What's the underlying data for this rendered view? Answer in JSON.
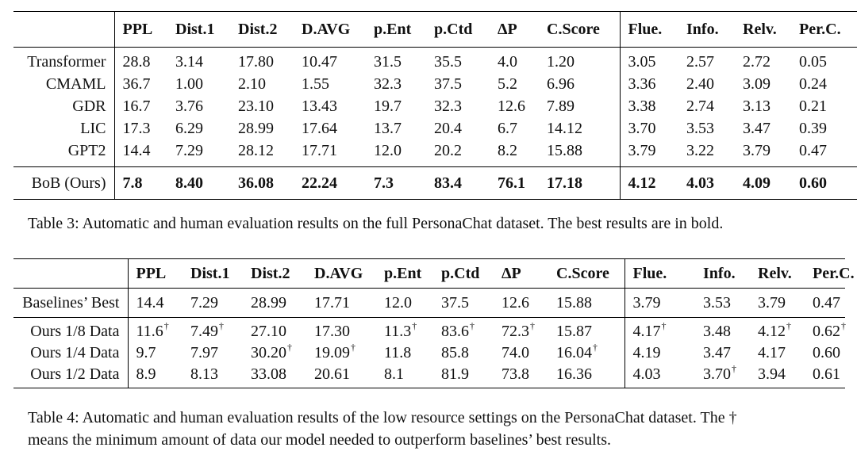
{
  "table3": {
    "headers": [
      "",
      "PPL",
      "Dist.1",
      "Dist.2",
      "D.AVG",
      "p.Ent",
      "p.Ctd",
      "ΔP",
      "C.Score",
      "Flue.",
      "Info.",
      "Relv.",
      "Per.C."
    ],
    "rows": [
      {
        "name": "Transformer",
        "values": [
          "28.8",
          "3.14",
          "17.80",
          "10.47",
          "31.5",
          "35.5",
          "4.0",
          "1.20",
          "3.05",
          "2.57",
          "2.72",
          "0.05"
        ]
      },
      {
        "name": "CMAML",
        "values": [
          "36.7",
          "1.00",
          "2.10",
          "1.55",
          "32.3",
          "37.5",
          "5.2",
          "6.96",
          "3.36",
          "2.40",
          "3.09",
          "0.24"
        ]
      },
      {
        "name": "GDR",
        "values": [
          "16.7",
          "3.76",
          "23.10",
          "13.43",
          "19.7",
          "32.3",
          "12.6",
          "7.89",
          "3.38",
          "2.74",
          "3.13",
          "0.21"
        ]
      },
      {
        "name": "LIC",
        "values": [
          "17.3",
          "6.29",
          "28.99",
          "17.64",
          "13.7",
          "20.4",
          "6.7",
          "14.12",
          "3.70",
          "3.53",
          "3.47",
          "0.39"
        ]
      },
      {
        "name": "GPT2",
        "values": [
          "14.4",
          "7.29",
          "28.12",
          "17.71",
          "12.0",
          "20.2",
          "8.2",
          "15.88",
          "3.79",
          "3.22",
          "3.79",
          "0.47"
        ]
      },
      {
        "name": "BoB (Ours)",
        "values": [
          "7.8",
          "8.40",
          "36.08",
          "22.24",
          "7.3",
          "83.4",
          "76.1",
          "17.18",
          "4.12",
          "4.03",
          "4.09",
          "0.60"
        ]
      }
    ],
    "caption": "Table 3: Automatic and human evaluation results on the full PersonaChat dataset. The best results are in bold."
  },
  "table4": {
    "headers": [
      "",
      "PPL",
      "Dist.1",
      "Dist.2",
      "D.AVG",
      "p.Ent",
      "p.Ctd",
      "ΔP",
      "C.Score",
      "Flue.",
      "Info.",
      "Relv.",
      "Per.C."
    ],
    "dagger": "†",
    "rows": [
      {
        "name": "Baselines’ Best",
        "values": [
          [
            "14.4",
            ""
          ],
          [
            "7.29",
            ""
          ],
          [
            "28.99",
            ""
          ],
          [
            "17.71",
            ""
          ],
          [
            "12.0",
            ""
          ],
          [
            "37.5",
            ""
          ],
          [
            "12.6",
            ""
          ],
          [
            "15.88",
            ""
          ],
          [
            "3.79",
            ""
          ],
          [
            "3.53",
            ""
          ],
          [
            "3.79",
            ""
          ],
          [
            "0.47",
            ""
          ]
        ]
      },
      {
        "name": "Ours 1/8 Data",
        "values": [
          [
            "11.6",
            "†"
          ],
          [
            "7.49",
            "†"
          ],
          [
            "27.10",
            ""
          ],
          [
            "17.30",
            ""
          ],
          [
            "11.3",
            "†"
          ],
          [
            "83.6",
            "†"
          ],
          [
            "72.3",
            "†"
          ],
          [
            "15.87",
            ""
          ],
          [
            "4.17",
            "†"
          ],
          [
            "3.48",
            ""
          ],
          [
            "4.12",
            "†"
          ],
          [
            "0.62",
            "†"
          ]
        ]
      },
      {
        "name": "Ours 1/4 Data",
        "values": [
          [
            "9.7",
            ""
          ],
          [
            "7.97",
            ""
          ],
          [
            "30.20",
            "†"
          ],
          [
            "19.09",
            "†"
          ],
          [
            "11.8",
            ""
          ],
          [
            "85.8",
            ""
          ],
          [
            "74.0",
            ""
          ],
          [
            "16.04",
            "†"
          ],
          [
            "4.19",
            ""
          ],
          [
            "3.47",
            ""
          ],
          [
            "4.17",
            ""
          ],
          [
            "0.60",
            ""
          ]
        ]
      },
      {
        "name": "Ours 1/2 Data",
        "values": [
          [
            "8.9",
            ""
          ],
          [
            "8.13",
            ""
          ],
          [
            "33.08",
            ""
          ],
          [
            "20.61",
            ""
          ],
          [
            "8.1",
            ""
          ],
          [
            "81.9",
            ""
          ],
          [
            "73.8",
            ""
          ],
          [
            "16.36",
            ""
          ],
          [
            "4.03",
            ""
          ],
          [
            "3.70",
            "†"
          ],
          [
            "3.94",
            ""
          ],
          [
            "0.61",
            ""
          ]
        ]
      }
    ],
    "caption_line1": "Table 4: Automatic and human evaluation results of the low resource settings on the PersonaChat dataset. The †",
    "caption_line2": "means the minimum amount of data our model needed to outperform baselines’ best results."
  }
}
